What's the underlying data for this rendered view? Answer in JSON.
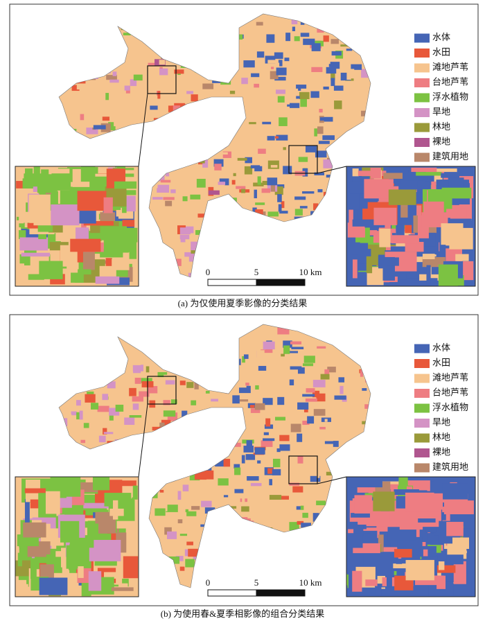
{
  "legend": [
    {
      "label": "水体",
      "color": "#4565b5"
    },
    {
      "label": "水田",
      "color": "#e8583a"
    },
    {
      "label": "滩地芦苇",
      "color": "#f6c48e"
    },
    {
      "label": "台地芦苇",
      "color": "#ee7d82"
    },
    {
      "label": "浮水植物",
      "color": "#7cc242"
    },
    {
      "label": "旱地",
      "color": "#d493c5"
    },
    {
      "label": "林地",
      "color": "#9a9a3a"
    },
    {
      "label": "裸地",
      "color": "#b0568f"
    },
    {
      "label": "建筑用地",
      "color": "#b9876a"
    }
  ],
  "scale": [
    "0",
    "5",
    "10 km"
  ],
  "panels": [
    {
      "caption": "(a) 为仅使用夏季影像的分类结果"
    },
    {
      "caption": "(b) 为使用春&夏季相影像的组合分类结果"
    }
  ]
}
